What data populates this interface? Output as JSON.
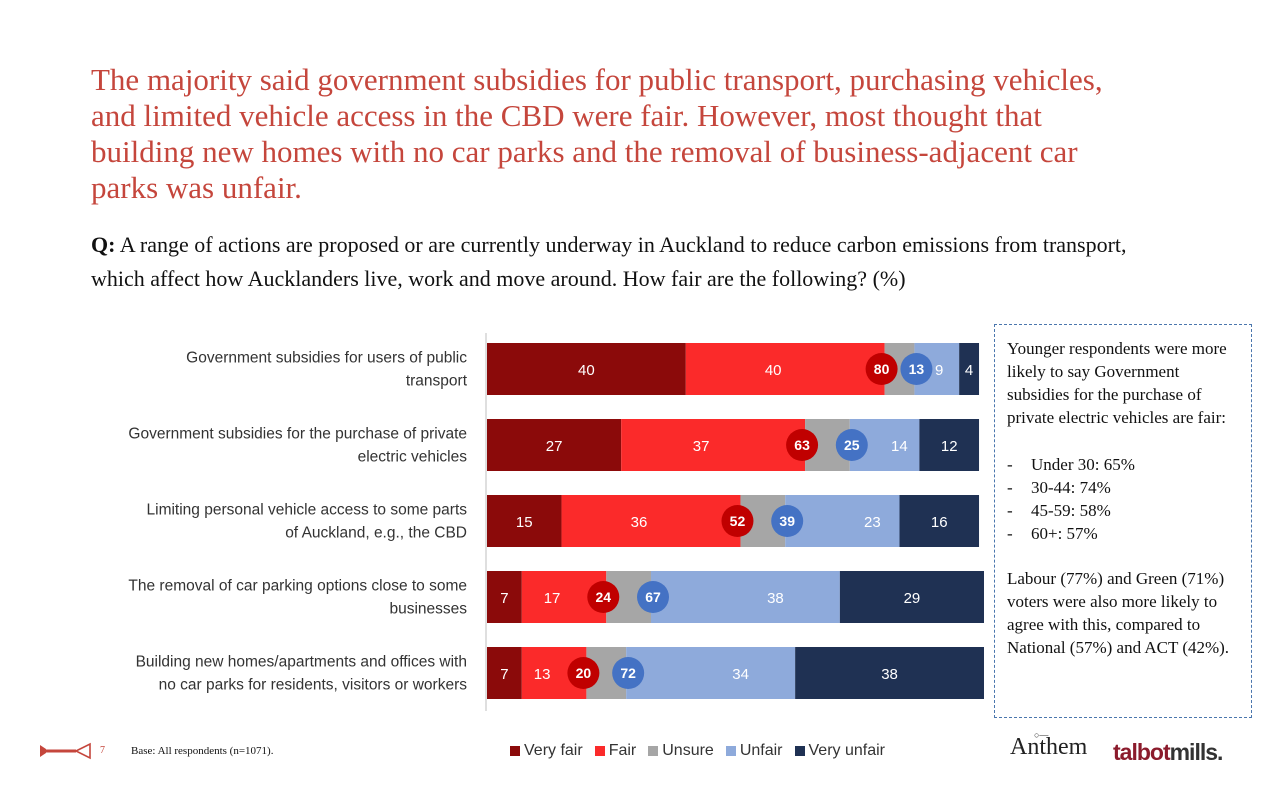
{
  "title": "The majority said government subsidies for public transport, purchasing vehicles, and limited vehicle access in the CBD were fair. However, most thought that building new homes with no car parks and the removal of business-adjacent car parks was unfair.",
  "question": {
    "label": "Q:",
    "text": "A range of actions are proposed or are currently underway in Auckland to reduce carbon emissions from transport, which affect how Aucklanders live, work and move around. How fair are the following? (%)"
  },
  "callout": {
    "intro": "Younger respondents were more likely to say Government subsidies for the purchase of private electric vehicles are fair:",
    "items": [
      "Under 30: 65%",
      "30-44: 74%",
      "45-59: 58%",
      "60+: 57%"
    ],
    "dash": "-",
    "closing": "Labour (77%) and Green (71%) voters were also more likely to agree with this, compared to National (57%) and ACT (42%)."
  },
  "footer": {
    "page_number": "7",
    "base": "Base: All respondents (n=1071).",
    "logo_anthem": "Anthem",
    "logo_talbot_a": "talbot",
    "logo_talbot_b": "mills."
  },
  "colors": {
    "very_fair": "#8b0a0a",
    "fair": "#fb2a2a",
    "unsure": "#a6a6a6",
    "unfair": "#8eaadb",
    "very_unfair": "#1f3153",
    "fair_total_circle": "#c00000",
    "unfair_total_circle": "#4472c4",
    "title": "#c5463c"
  },
  "chart_data": {
    "type": "bar",
    "orientation": "horizontal",
    "stacked": true,
    "categories": [
      "Government subsidies for users of public transport",
      "Government subsidies for the purchase of private electric vehicles",
      "Limiting personal vehicle access to some parts of Auckland, e.g., the CBD",
      "The removal of car parking options close to some businesses",
      "Building new homes/apartments and offices with no car parks for residents, visitors or workers"
    ],
    "series": [
      {
        "name": "Very fair",
        "values": [
          40,
          27,
          15,
          7,
          7
        ]
      },
      {
        "name": "Fair",
        "values": [
          40,
          37,
          36,
          17,
          13
        ]
      },
      {
        "name": "Unsure",
        "values": [
          6,
          9,
          9,
          9,
          8
        ]
      },
      {
        "name": "Unfair",
        "values": [
          9,
          14,
          23,
          38,
          34
        ]
      },
      {
        "name": "Very unfair",
        "values": [
          4,
          12,
          16,
          29,
          38
        ]
      }
    ],
    "fair_totals": [
      80,
      63,
      52,
      24,
      20
    ],
    "unfair_totals": [
      13,
      25,
      39,
      67,
      72
    ],
    "xlim": [
      0,
      100
    ],
    "legend_position": "bottom"
  }
}
